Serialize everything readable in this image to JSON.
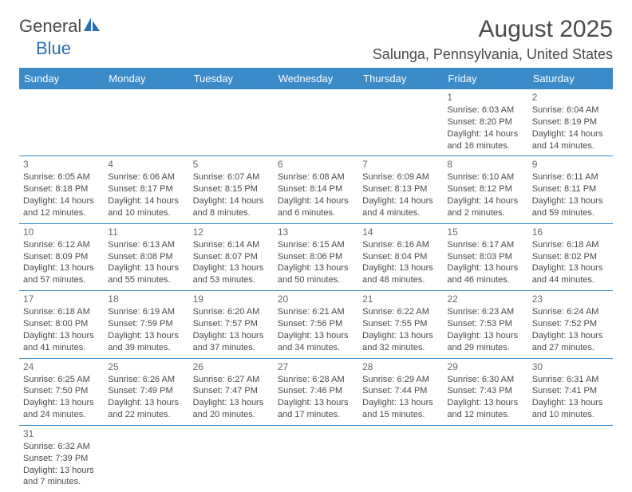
{
  "logo": {
    "text_general": "General",
    "text_blue": "Blue",
    "accent_color": "#2a6fb0"
  },
  "header": {
    "title": "August 2025",
    "location": "Salunga, Pennsylvania, United States"
  },
  "colors": {
    "header_bg": "#3b8bc9",
    "border": "#3b8bc9",
    "text": "#4a4a4a"
  },
  "weekdays": [
    "Sunday",
    "Monday",
    "Tuesday",
    "Wednesday",
    "Thursday",
    "Friday",
    "Saturday"
  ],
  "cells": [
    [
      null,
      null,
      null,
      null,
      null,
      {
        "n": "1",
        "sr": "Sunrise: 6:03 AM",
        "ss": "Sunset: 8:20 PM",
        "dl": "Daylight: 14 hours and 16 minutes."
      },
      {
        "n": "2",
        "sr": "Sunrise: 6:04 AM",
        "ss": "Sunset: 8:19 PM",
        "dl": "Daylight: 14 hours and 14 minutes."
      }
    ],
    [
      {
        "n": "3",
        "sr": "Sunrise: 6:05 AM",
        "ss": "Sunset: 8:18 PM",
        "dl": "Daylight: 14 hours and 12 minutes."
      },
      {
        "n": "4",
        "sr": "Sunrise: 6:06 AM",
        "ss": "Sunset: 8:17 PM",
        "dl": "Daylight: 14 hours and 10 minutes."
      },
      {
        "n": "5",
        "sr": "Sunrise: 6:07 AM",
        "ss": "Sunset: 8:15 PM",
        "dl": "Daylight: 14 hours and 8 minutes."
      },
      {
        "n": "6",
        "sr": "Sunrise: 6:08 AM",
        "ss": "Sunset: 8:14 PM",
        "dl": "Daylight: 14 hours and 6 minutes."
      },
      {
        "n": "7",
        "sr": "Sunrise: 6:09 AM",
        "ss": "Sunset: 8:13 PM",
        "dl": "Daylight: 14 hours and 4 minutes."
      },
      {
        "n": "8",
        "sr": "Sunrise: 6:10 AM",
        "ss": "Sunset: 8:12 PM",
        "dl": "Daylight: 14 hours and 2 minutes."
      },
      {
        "n": "9",
        "sr": "Sunrise: 6:11 AM",
        "ss": "Sunset: 8:11 PM",
        "dl": "Daylight: 13 hours and 59 minutes."
      }
    ],
    [
      {
        "n": "10",
        "sr": "Sunrise: 6:12 AM",
        "ss": "Sunset: 8:09 PM",
        "dl": "Daylight: 13 hours and 57 minutes."
      },
      {
        "n": "11",
        "sr": "Sunrise: 6:13 AM",
        "ss": "Sunset: 8:08 PM",
        "dl": "Daylight: 13 hours and 55 minutes."
      },
      {
        "n": "12",
        "sr": "Sunrise: 6:14 AM",
        "ss": "Sunset: 8:07 PM",
        "dl": "Daylight: 13 hours and 53 minutes."
      },
      {
        "n": "13",
        "sr": "Sunrise: 6:15 AM",
        "ss": "Sunset: 8:06 PM",
        "dl": "Daylight: 13 hours and 50 minutes."
      },
      {
        "n": "14",
        "sr": "Sunrise: 6:16 AM",
        "ss": "Sunset: 8:04 PM",
        "dl": "Daylight: 13 hours and 48 minutes."
      },
      {
        "n": "15",
        "sr": "Sunrise: 6:17 AM",
        "ss": "Sunset: 8:03 PM",
        "dl": "Daylight: 13 hours and 46 minutes."
      },
      {
        "n": "16",
        "sr": "Sunrise: 6:18 AM",
        "ss": "Sunset: 8:02 PM",
        "dl": "Daylight: 13 hours and 44 minutes."
      }
    ],
    [
      {
        "n": "17",
        "sr": "Sunrise: 6:18 AM",
        "ss": "Sunset: 8:00 PM",
        "dl": "Daylight: 13 hours and 41 minutes."
      },
      {
        "n": "18",
        "sr": "Sunrise: 6:19 AM",
        "ss": "Sunset: 7:59 PM",
        "dl": "Daylight: 13 hours and 39 minutes."
      },
      {
        "n": "19",
        "sr": "Sunrise: 6:20 AM",
        "ss": "Sunset: 7:57 PM",
        "dl": "Daylight: 13 hours and 37 minutes."
      },
      {
        "n": "20",
        "sr": "Sunrise: 6:21 AM",
        "ss": "Sunset: 7:56 PM",
        "dl": "Daylight: 13 hours and 34 minutes."
      },
      {
        "n": "21",
        "sr": "Sunrise: 6:22 AM",
        "ss": "Sunset: 7:55 PM",
        "dl": "Daylight: 13 hours and 32 minutes."
      },
      {
        "n": "22",
        "sr": "Sunrise: 6:23 AM",
        "ss": "Sunset: 7:53 PM",
        "dl": "Daylight: 13 hours and 29 minutes."
      },
      {
        "n": "23",
        "sr": "Sunrise: 6:24 AM",
        "ss": "Sunset: 7:52 PM",
        "dl": "Daylight: 13 hours and 27 minutes."
      }
    ],
    [
      {
        "n": "24",
        "sr": "Sunrise: 6:25 AM",
        "ss": "Sunset: 7:50 PM",
        "dl": "Daylight: 13 hours and 24 minutes."
      },
      {
        "n": "25",
        "sr": "Sunrise: 6:26 AM",
        "ss": "Sunset: 7:49 PM",
        "dl": "Daylight: 13 hours and 22 minutes."
      },
      {
        "n": "26",
        "sr": "Sunrise: 6:27 AM",
        "ss": "Sunset: 7:47 PM",
        "dl": "Daylight: 13 hours and 20 minutes."
      },
      {
        "n": "27",
        "sr": "Sunrise: 6:28 AM",
        "ss": "Sunset: 7:46 PM",
        "dl": "Daylight: 13 hours and 17 minutes."
      },
      {
        "n": "28",
        "sr": "Sunrise: 6:29 AM",
        "ss": "Sunset: 7:44 PM",
        "dl": "Daylight: 13 hours and 15 minutes."
      },
      {
        "n": "29",
        "sr": "Sunrise: 6:30 AM",
        "ss": "Sunset: 7:43 PM",
        "dl": "Daylight: 13 hours and 12 minutes."
      },
      {
        "n": "30",
        "sr": "Sunrise: 6:31 AM",
        "ss": "Sunset: 7:41 PM",
        "dl": "Daylight: 13 hours and 10 minutes."
      }
    ],
    [
      {
        "n": "31",
        "sr": "Sunrise: 6:32 AM",
        "ss": "Sunset: 7:39 PM",
        "dl": "Daylight: 13 hours and 7 minutes."
      },
      null,
      null,
      null,
      null,
      null,
      null
    ]
  ]
}
